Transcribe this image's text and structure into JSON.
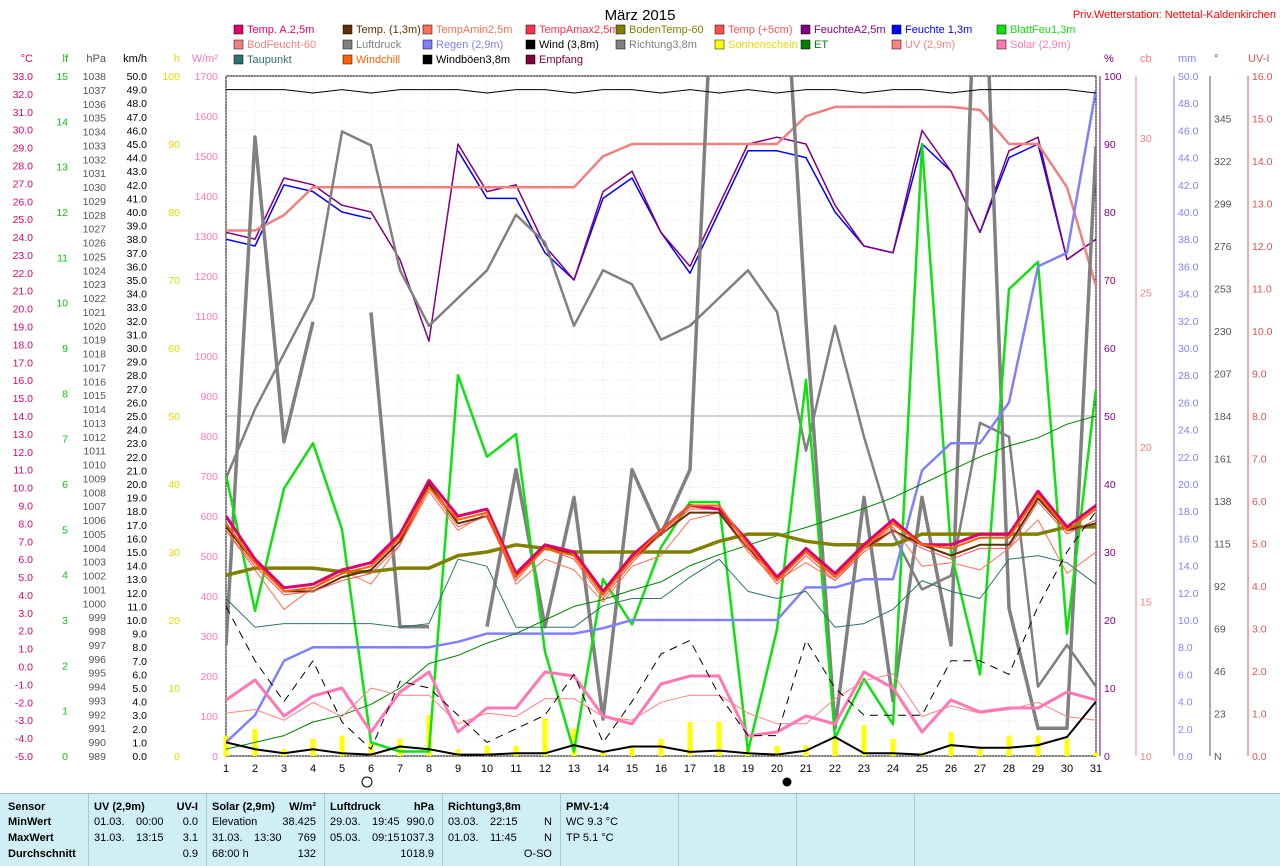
{
  "title": "März 2015",
  "station": "Priv.Wetterstation: Nettetal-Kaldenkirchen",
  "axes": {
    "left": [
      {
        "unit": "°C",
        "color": "#e0006a",
        "min": -5,
        "max": 33,
        "step": 1,
        "decimals": 1
      },
      {
        "unit": "lf",
        "color": "#10c010",
        "min": 0,
        "max": 15,
        "step": 1,
        "decimals": 0
      },
      {
        "unit": "hPa",
        "color": "#555555",
        "min": 989,
        "max": 1038,
        "step": 1,
        "decimals": 0
      },
      {
        "unit": "km/h",
        "color": "#000000",
        "min": 0,
        "max": 50,
        "step": 1,
        "decimals": 1
      },
      {
        "unit": "h",
        "color": "#e8d800",
        "min": 0,
        "max": 100,
        "step": 10,
        "decimals": 0
      },
      {
        "unit": "W/m²",
        "color": "#ff78b4",
        "min": 0,
        "max": 1700,
        "step": 100,
        "decimals": 0
      }
    ],
    "right": [
      {
        "unit": "%",
        "color": "#800080",
        "min": 0,
        "max": 100,
        "step": 10,
        "decimals": 0
      },
      {
        "unit": "cb",
        "color": "#f08080",
        "min": 10,
        "max": 32,
        "step": 5,
        "decimals": 0
      },
      {
        "unit": "mm",
        "color": "#8080ff",
        "min": 0,
        "max": 50,
        "step": 2,
        "decimals": 1
      },
      {
        "unit": "°",
        "color": "#555555",
        "ticks": [
          [
            "345",
            345
          ],
          [
            "322",
            322
          ],
          [
            "299",
            299
          ],
          [
            "276",
            276
          ],
          [
            "253",
            253
          ],
          [
            "230",
            230
          ],
          [
            "207",
            207
          ],
          [
            "184",
            184
          ],
          [
            "161",
            161
          ],
          [
            "138",
            138
          ],
          [
            "115",
            115
          ],
          [
            "92",
            92
          ],
          [
            "69",
            69
          ],
          [
            "46",
            46
          ],
          [
            "23",
            23
          ],
          [
            "N",
            0
          ]
        ]
      },
      {
        "unit": "UV-I",
        "color": "#e05050",
        "min": 0,
        "max": 16,
        "step": 1,
        "decimals": 1
      }
    ]
  },
  "x_labels": [
    "1",
    "2",
    "3",
    "4",
    "5",
    "6",
    "7",
    "8",
    "9",
    "10",
    "11",
    "12",
    "13",
    "14",
    "15",
    "16",
    "17",
    "18",
    "19",
    "20",
    "21",
    "22",
    "23",
    "24",
    "25",
    "26",
    "27",
    "28",
    "29",
    "30",
    "31"
  ],
  "legend": [
    {
      "label": "Temp. A.2,5m",
      "color": "#e0006a"
    },
    {
      "label": "Temp. (1,3m)",
      "color": "#603000"
    },
    {
      "label": "TempAmin2,5m",
      "color": "#ff7050"
    },
    {
      "label": "TempAmax2,5m",
      "color": "#ff3050"
    },
    {
      "label": "BodenTemp-60",
      "color": "#808000"
    },
    {
      "label": "Temp (+5cm)",
      "color": "#ff5050"
    },
    {
      "label": "FeuchteA2,5m",
      "color": "#800080"
    },
    {
      "label": "Feuchte 1,3m",
      "color": "#0000ff"
    },
    {
      "label": "BlattFeu1,3m",
      "color": "#10e010"
    },
    {
      "label": "BodFeucht-60",
      "color": "#f08080"
    },
    {
      "label": "Luftdruck",
      "color": "#808080"
    },
    {
      "label": "Regen (2,9m)",
      "color": "#8080ff"
    },
    {
      "label": "Wind (3,8m)",
      "color": "#000000"
    },
    {
      "label": "Richtung3,8m",
      "color": "#808080"
    },
    {
      "label": "Sonnenschein",
      "color": "#ffff00"
    },
    {
      "label": "ET",
      "color": "#008000"
    },
    {
      "label": "UV (2,9m)",
      "color": "#ff8080"
    },
    {
      "label": "Solar (2,9m)",
      "color": "#ff78b4"
    },
    {
      "label": "Taupunkt",
      "color": "#307070"
    },
    {
      "label": "Windchill",
      "color": "#ff6000"
    },
    {
      "label": "Windböen3,8m",
      "color": "#000000"
    },
    {
      "label": "Empfang",
      "color": "#800040"
    }
  ],
  "chart_data": {
    "type": "line",
    "title": "März 2015",
    "x": [
      1,
      2,
      3,
      4,
      5,
      6,
      7,
      8,
      9,
      10,
      11,
      12,
      13,
      14,
      15,
      16,
      17,
      18,
      19,
      20,
      21,
      22,
      23,
      24,
      25,
      26,
      27,
      28,
      29,
      30,
      31
    ],
    "series": [
      {
        "name": "Feuchte 1,3m",
        "axis": "%",
        "color": "#0000ff",
        "width": 1.5,
        "values": [
          76,
          75,
          84,
          83,
          80,
          79,
          null,
          null,
          89,
          82,
          82,
          74,
          70,
          82,
          85,
          77,
          71,
          80,
          89,
          89,
          88,
          80,
          75,
          74,
          90,
          86,
          77,
          88,
          90,
          73,
          76
        ]
      },
      {
        "name": "FeuchteA2,5m",
        "axis": "%",
        "color": "#800080",
        "width": 1.5,
        "values": [
          77,
          76,
          85,
          84,
          81,
          80,
          73,
          61,
          90,
          83,
          84,
          75,
          70,
          83,
          86,
          77,
          72,
          81,
          90,
          91,
          90,
          81,
          75,
          74,
          92,
          86,
          77,
          89,
          91,
          73,
          76
        ]
      },
      {
        "name": "BodFeucht-60",
        "axis": "cb",
        "color": "#f08080",
        "width": 2.5,
        "values": [
          27,
          27,
          27.5,
          28.4,
          28.4,
          28.4,
          28.4,
          28.4,
          28.4,
          28.4,
          28.4,
          28.4,
          28.4,
          29.4,
          29.8,
          29.8,
          29.8,
          29.8,
          29.8,
          29.8,
          30.7,
          31,
          31,
          31,
          31,
          31,
          30.9,
          29.8,
          29.8,
          28.4,
          25.2
        ]
      },
      {
        "name": "Luftdruck",
        "axis": "hPa",
        "color": "#808080",
        "width": 2.5,
        "values": [
          1009,
          1014,
          1018,
          1022,
          1034,
          1033,
          1024,
          1020,
          1022,
          1024,
          1028,
          1026,
          1020,
          1024,
          1023,
          1019,
          1020,
          1022,
          1024,
          1021,
          1011,
          1020,
          1012,
          1005,
          1001,
          1002,
          1013,
          1012,
          994,
          997,
          994
        ]
      },
      {
        "name": "Richtung3,8m",
        "axis": "°",
        "color": "#808080",
        "width": 3.5,
        "values": [
          60,
          335,
          170,
          235,
          null,
          240,
          70,
          70,
          null,
          70,
          155,
          70,
          140,
          20,
          155,
          120,
          155,
          500,
          500,
          500,
          235,
          15,
          140,
          30,
          140,
          60,
          500,
          80,
          15,
          15,
          330
        ]
      },
      {
        "name": "BlattFeu1,3m",
        "axis": "lf",
        "color": "#10e010",
        "width": 2.5,
        "values": [
          6.2,
          3.2,
          5.9,
          6.9,
          5.0,
          0.3,
          0.1,
          0.1,
          8.4,
          6.6,
          7.1,
          2.3,
          0.1,
          3.9,
          2.9,
          4.6,
          5.6,
          5.6,
          0.1,
          2.8,
          8.3,
          0.4,
          1.7,
          0.7,
          13.5,
          4.5,
          1.8,
          10.3,
          10.9,
          2.7,
          8.1
        ]
      },
      {
        "name": "Regen (2,9m)",
        "axis": "mm",
        "color": "#8080ff",
        "width": 2.5,
        "values": [
          1,
          3,
          7,
          8,
          8,
          8,
          8,
          8,
          8.4,
          9,
          9,
          9,
          9,
          9.4,
          10,
          10,
          10,
          10,
          10,
          10,
          12.4,
          12.4,
          13,
          13,
          21,
          23,
          23,
          26,
          36,
          37,
          49
        ]
      },
      {
        "name": "ET",
        "axis": "mm",
        "color": "#008000",
        "width": 1,
        "values": [
          0.5,
          1,
          1.5,
          2.5,
          3,
          3.8,
          5,
          6.8,
          7.4,
          8.3,
          9,
          10,
          11,
          11.5,
          12.2,
          12.8,
          14,
          14.8,
          15.5,
          16.2,
          16.8,
          17.5,
          18.2,
          19,
          20,
          21,
          22,
          22.8,
          23.4,
          24.4,
          25
        ]
      },
      {
        "name": "Taupunkt",
        "axis": "°C",
        "color": "#307070",
        "width": 1,
        "values": [
          3.8,
          2.2,
          2.4,
          2.4,
          2.4,
          2.4,
          2.2,
          2.4,
          6.0,
          5.6,
          2.2,
          2.2,
          2.2,
          3.4,
          3.8,
          3.8,
          5.0,
          6.0,
          4.2,
          3.8,
          4.2,
          2.2,
          2.4,
          3.2,
          4.8,
          4.2,
          3.8,
          6.0,
          6.2,
          5.8,
          4.6
        ]
      },
      {
        "name": "TempAmin2,5m",
        "axis": "°C",
        "color": "#ff7050",
        "width": 1,
        "values": [
          7.6,
          5.4,
          3.2,
          4.4,
          5.4,
          4.6,
          6.8,
          9.8,
          7.6,
          8.6,
          4.6,
          6.0,
          5.4,
          3.6,
          5.6,
          6.2,
          8.2,
          8.6,
          6.4,
          4.8,
          5.8,
          4.8,
          6.6,
          7.8,
          5.6,
          5.8,
          5.4,
          6.6,
          8.2,
          5.2,
          6.4
        ]
      },
      {
        "name": "BodenTemp-60",
        "axis": "°C",
        "color": "#808000",
        "width": 3.5,
        "values": [
          5.1,
          5.5,
          5.5,
          5.5,
          5.3,
          5.3,
          5.5,
          5.5,
          6.2,
          6.4,
          6.8,
          6.6,
          6.4,
          6.4,
          6.4,
          6.4,
          6.4,
          7.0,
          7.4,
          7.4,
          7.0,
          6.8,
          6.8,
          6.8,
          7.4,
          7.4,
          7.4,
          7.4,
          7.4,
          7.8,
          7.8
        ]
      },
      {
        "name": "Temp. (1,3m)",
        "axis": "°C",
        "color": "#603000",
        "width": 2,
        "values": [
          7.8,
          5.8,
          4.2,
          4.2,
          5.0,
          5.4,
          7.0,
          10.2,
          8.0,
          8.4,
          5.0,
          6.8,
          6.2,
          4.2,
          6.0,
          7.4,
          8.6,
          8.6,
          6.6,
          5.0,
          6.4,
          5.0,
          6.6,
          7.6,
          6.8,
          6.2,
          6.8,
          6.8,
          9.4,
          7.6,
          8.0
        ]
      },
      {
        "name": "Temp (+5cm)",
        "axis": "°C",
        "color": "#ff5050",
        "width": 1,
        "values": [
          7.6,
          5.6,
          4.0,
          4.2,
          4.8,
          5.2,
          6.8,
          10.0,
          7.8,
          8.4,
          4.8,
          6.6,
          6.0,
          3.8,
          5.8,
          7.4,
          8.8,
          8.8,
          6.6,
          4.6,
          6.2,
          4.8,
          6.4,
          7.6,
          6.6,
          6.0,
          6.6,
          6.6,
          9.2,
          7.4,
          8.2
        ]
      },
      {
        "name": "Temp. A.2,5m",
        "axis": "°C",
        "color": "#e0006a",
        "width": 3,
        "values": [
          8.4,
          6.0,
          4.4,
          4.6,
          5.4,
          5.8,
          7.4,
          10.4,
          8.4,
          8.8,
          5.2,
          6.8,
          6.4,
          4.2,
          6.2,
          7.6,
          9.0,
          8.8,
          7.0,
          5.0,
          6.6,
          5.2,
          6.8,
          8.2,
          6.8,
          6.8,
          7.4,
          7.4,
          9.8,
          7.8,
          9.0
        ]
      },
      {
        "name": "UV (2,9m)",
        "axis": "°C",
        "color": "#ff8080",
        "width": 1,
        "values": [
          -2.6,
          -2.4,
          -3.0,
          -2.0,
          -2.8,
          -1.2,
          -1.6,
          -1.6,
          -3.2,
          -2.6,
          -2.8,
          -1.8,
          -1.8,
          -2.8,
          -3.0,
          -2.0,
          -1.6,
          -1.6,
          -2.6,
          -3.2,
          -3.2,
          -1.8,
          -0.8,
          -0.4,
          -2.8,
          -2.2,
          -2.6,
          -2.4,
          -2.0,
          -2.8,
          -3.0
        ]
      },
      {
        "name": "Solar (2,9m)",
        "axis": "W/m²",
        "color": "#ff78b4",
        "width": 3,
        "values": [
          140,
          190,
          100,
          150,
          170,
          60,
          160,
          210,
          60,
          120,
          120,
          210,
          200,
          100,
          80,
          180,
          200,
          200,
          50,
          60,
          100,
          80,
          210,
          170,
          60,
          140,
          110,
          120,
          120,
          160,
          140
        ]
      },
      {
        "name": "Windböen3,8m",
        "axis": "km/h",
        "color": "#000000",
        "width": 1,
        "dash": "8,6",
        "values": [
          11,
          7,
          4,
          7,
          2.5,
          0.5,
          5.5,
          5,
          3,
          1,
          2,
          3,
          6,
          1,
          4,
          7.5,
          8.5,
          4.5,
          1.5,
          1.5,
          8.5,
          5,
          3,
          3,
          3,
          7,
          7,
          6,
          11,
          15,
          18
        ]
      },
      {
        "name": "Windchill",
        "axis": "°C",
        "color": "#ff6000",
        "width": 2,
        "values": [
          8.0,
          5.8,
          4.2,
          4.4,
          5.2,
          5.6,
          7.2,
          10.0,
          8.2,
          8.6,
          5.0,
          6.6,
          6.2,
          4.0,
          6.0,
          7.6,
          9.0,
          9.0,
          6.8,
          4.8,
          6.4,
          5.0,
          6.6,
          8.0,
          6.8,
          6.6,
          7.2,
          7.2,
          9.6,
          7.6,
          8.8
        ]
      },
      {
        "name": "Wind (3,8m)",
        "axis": "km/h",
        "color": "#000000",
        "width": 2,
        "values": [
          1,
          0.5,
          0.2,
          0.5,
          0.2,
          0.1,
          0.7,
          0.5,
          0.1,
          0.1,
          0.2,
          0.2,
          0.8,
          0.3,
          0.7,
          0.7,
          0.3,
          0.4,
          0.2,
          0.1,
          0.4,
          1.4,
          0.2,
          0.2,
          0.1,
          0.8,
          0.6,
          0.6,
          0.8,
          1.4,
          4
        ]
      },
      {
        "name": "Empfang",
        "axis": "%",
        "color": "#000000",
        "width": 1,
        "values": [
          98,
          98,
          98,
          97.5,
          98,
          97.5,
          98,
          98,
          98,
          97.5,
          98,
          98,
          97.5,
          98,
          98,
          97.5,
          98,
          97.5,
          98,
          97.5,
          98,
          98,
          97.5,
          98,
          98,
          97.5,
          98,
          98,
          98,
          98,
          97.5
        ]
      },
      {
        "name": "Sonnenschein",
        "axis": "h",
        "color": "#ffff00",
        "type": "bar",
        "values": [
          3,
          4,
          1,
          2.5,
          3,
          2,
          2.5,
          6,
          1,
          1.5,
          1.5,
          5.5,
          4,
          0.5,
          1.5,
          2.5,
          5,
          5,
          1,
          1.5,
          1.5,
          3,
          4.5,
          2.5,
          0.5,
          3.5,
          1,
          3,
          3,
          2.5,
          0.5
        ]
      }
    ]
  },
  "panel": {
    "sensor": {
      "header": "Sensor",
      "min": "MinWert",
      "max": "MaxWert",
      "avg": "Durchschnitt"
    },
    "uv": {
      "header": "UV (2,9m)",
      "header_r": "UV-I",
      "min_date": "01.03.",
      "min_time": "00:00",
      "min_val": "0.0",
      "max_date": "31.03.",
      "max_time": "13:15",
      "max_val": "3.1",
      "avg_val": "0.9"
    },
    "solar": {
      "header": "Solar (2,9m)",
      "header_r": "W/m²",
      "min_label": "Elevation",
      "min_val": "38.425",
      "max_date": "31.03.",
      "max_time": "13:30",
      "max_val": "769",
      "avg_label": "68:00 h",
      "avg_val": "132"
    },
    "pressure": {
      "header": "Luftdruck",
      "header_r": "hPa",
      "min_date": "29.03.",
      "min_time": "19:45",
      "min_val": "990.0",
      "max_date": "05.03.",
      "max_time": "09:15",
      "max_val": "1037.3",
      "avg_val": "1018.9"
    },
    "direction": {
      "header": "Richtung3,8m",
      "min_date": "03.03.",
      "min_time": "22:15",
      "min_val": "N",
      "max_date": "01.03.",
      "max_time": "11:45",
      "max_val": "N",
      "avg_val": "O-SO"
    },
    "pmv": {
      "header": "PMV-1:4",
      "line1": "WC 9.3 °C",
      "line2": "TP 5.1 °C"
    }
  }
}
